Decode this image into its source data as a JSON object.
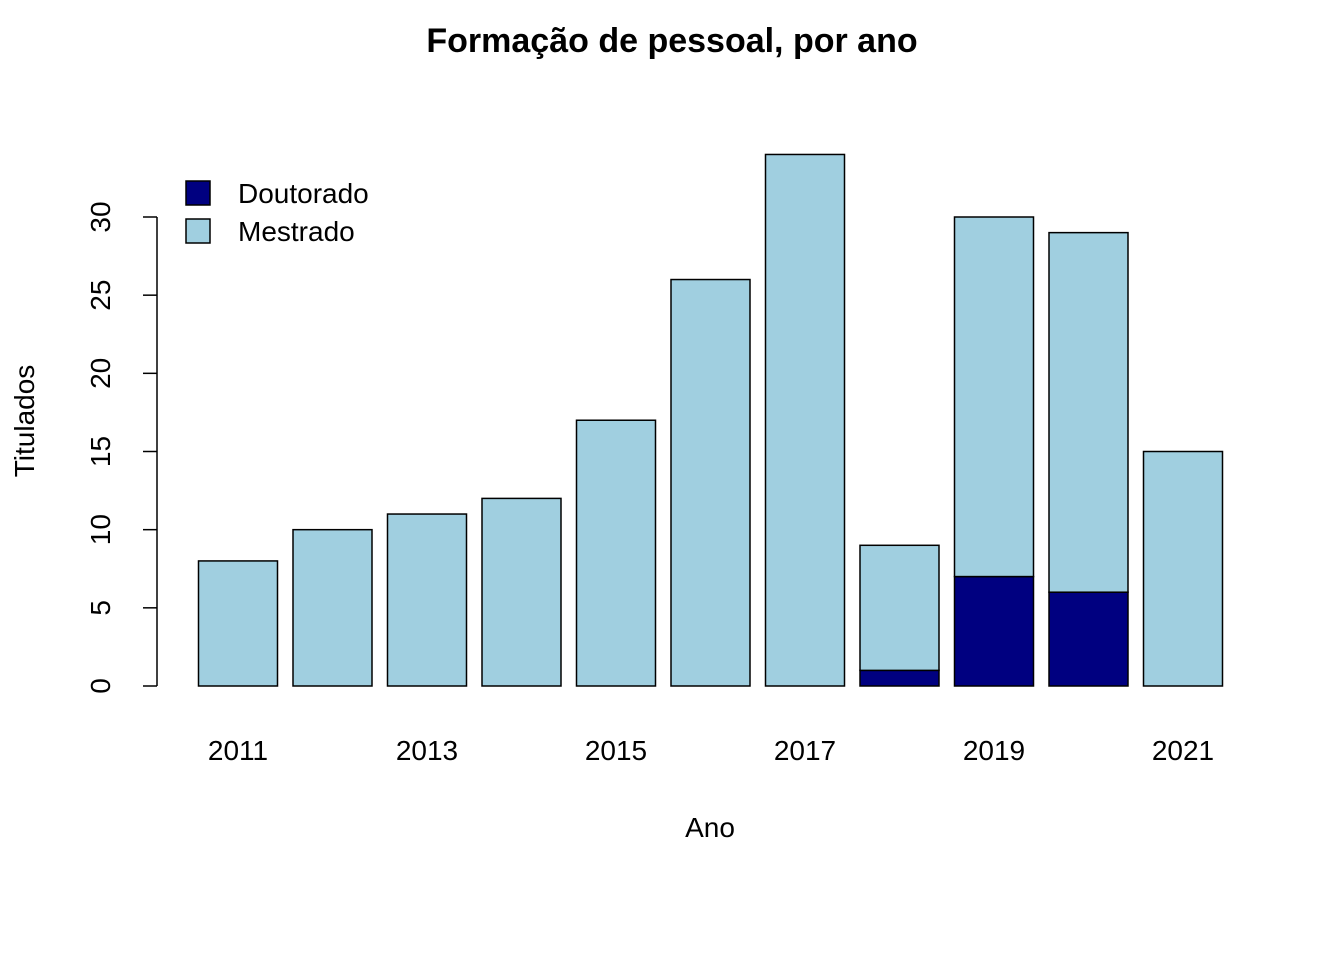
{
  "chart_data": {
    "type": "bar",
    "stacked": true,
    "title": "Formação de pessoal, por ano",
    "xlabel": "Ano",
    "ylabel": "Titulados",
    "categories": [
      "2011",
      "2012",
      "2013",
      "2014",
      "2015",
      "2016",
      "2017",
      "2018",
      "2019",
      "2020",
      "2021"
    ],
    "x_tick_labels": [
      "2011",
      "",
      "2013",
      "",
      "2015",
      "",
      "2017",
      "",
      "2019",
      "",
      "2021"
    ],
    "y_ticks": [
      0,
      5,
      10,
      15,
      20,
      25,
      30
    ],
    "y_tick_labels": [
      "0",
      "5",
      "10",
      "15",
      "20",
      "25",
      "30"
    ],
    "ylim": [
      0,
      34
    ],
    "series": [
      {
        "name": "Doutorado",
        "color": "#000080",
        "values": [
          0,
          0,
          0,
          0,
          0,
          0,
          0,
          1,
          7,
          6,
          0
        ]
      },
      {
        "name": "Mestrado",
        "color": "#a0cfe0",
        "values": [
          8,
          10,
          11,
          12,
          17,
          26,
          34,
          8,
          23,
          23,
          15
        ]
      }
    ],
    "legend": {
      "position": "top-left",
      "entries": [
        "Doutorado",
        "Mestrado"
      ]
    },
    "grid": false
  }
}
